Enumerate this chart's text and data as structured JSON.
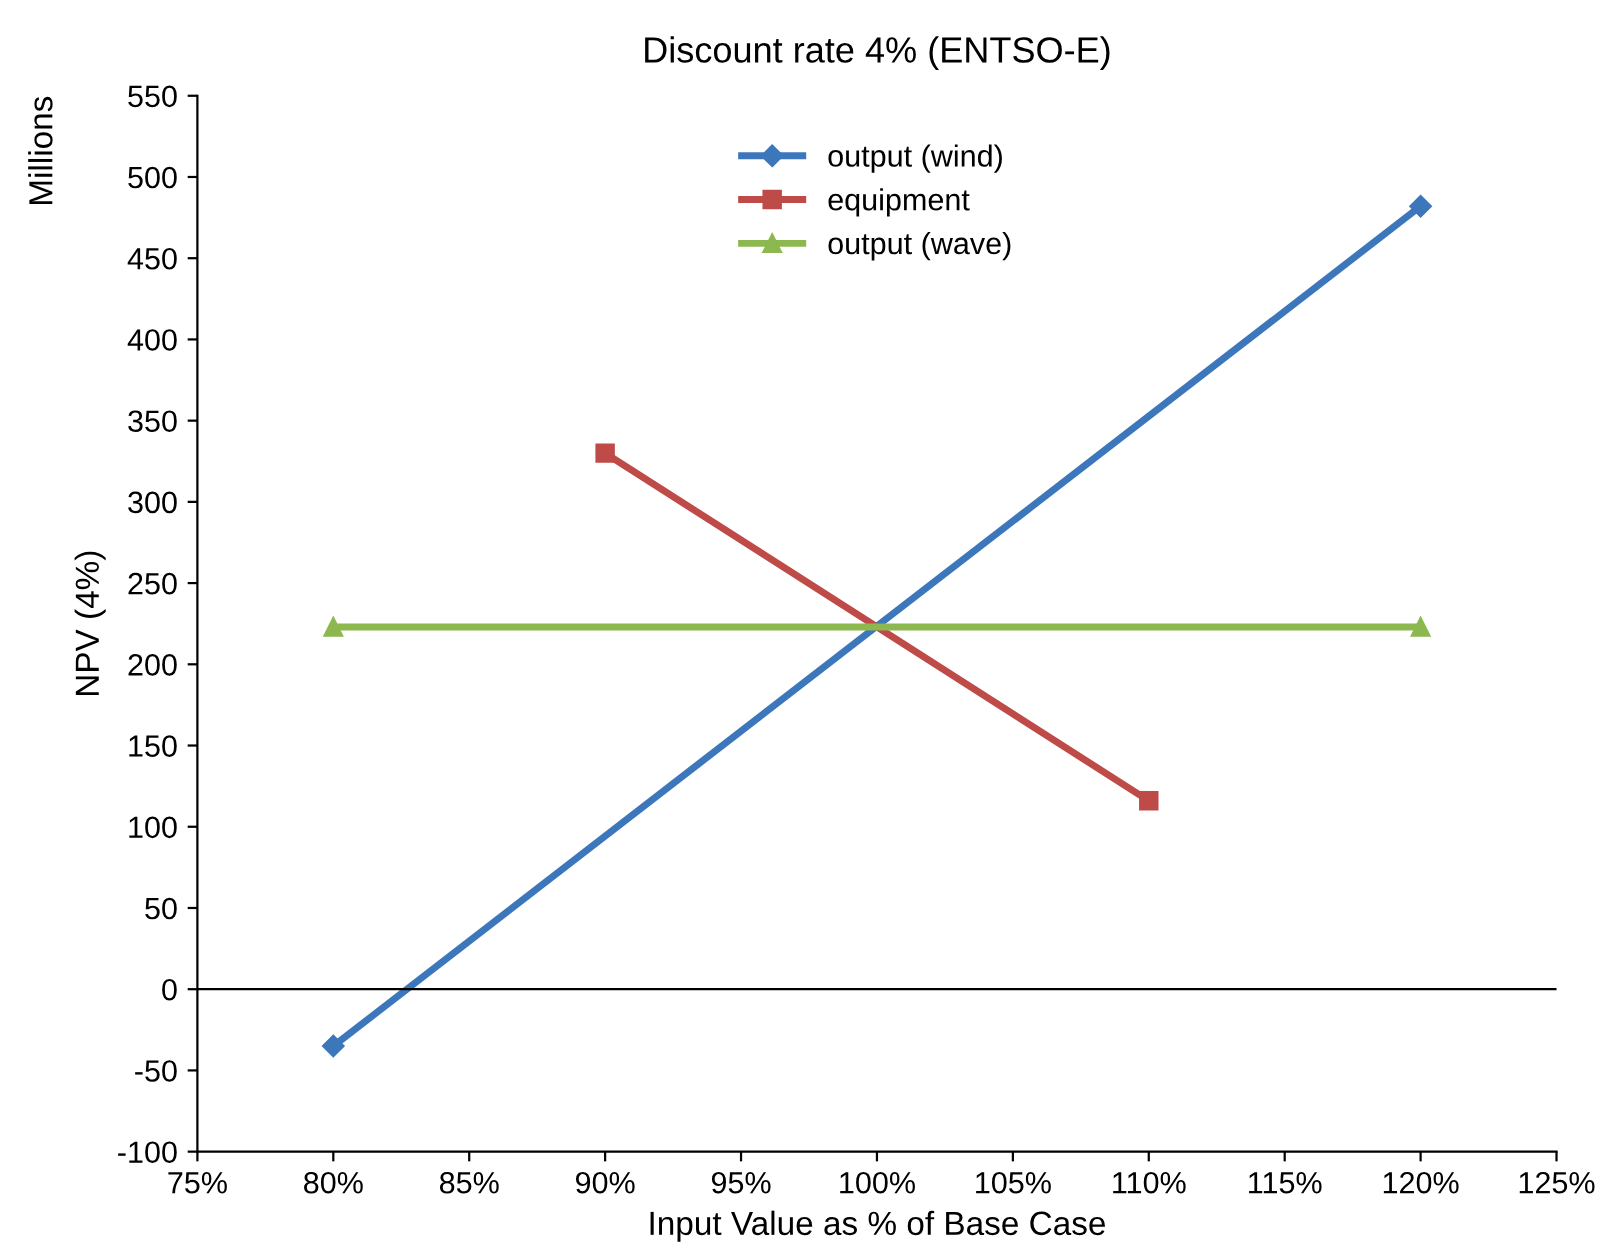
{
  "chart_data": {
    "type": "line",
    "title": "Discount rate 4% (ENTSO-E)",
    "xlabel": "Input Value as % of Base Case",
    "ylabel": "NPV (4%)",
    "annotations": [
      "Millions"
    ],
    "series": [
      {
        "name": "output (wind)",
        "color": "#3d77bb",
        "marker": "diamond",
        "x": [
          80,
          120
        ],
        "values": [
          -35,
          482
        ]
      },
      {
        "name": "equipment",
        "color": "#be4b48",
        "marker": "square",
        "x": [
          90,
          110
        ],
        "values": [
          330,
          116
        ]
      },
      {
        "name": "output (wave)",
        "color": "#8cb84f",
        "marker": "triangle",
        "x": [
          80,
          120
        ],
        "values": [
          223,
          223
        ]
      }
    ],
    "xlim": [
      75,
      125
    ],
    "xticks": [
      {
        "value": 75,
        "label": "75%"
      },
      {
        "value": 80,
        "label": "80%"
      },
      {
        "value": 85,
        "label": "85%"
      },
      {
        "value": 90,
        "label": "90%"
      },
      {
        "value": 95,
        "label": "95%"
      },
      {
        "value": 100,
        "label": "100%"
      },
      {
        "value": 105,
        "label": "105%"
      },
      {
        "value": 110,
        "label": "110%"
      },
      {
        "value": 115,
        "label": "115%"
      },
      {
        "value": 120,
        "label": "120%"
      },
      {
        "value": 125,
        "label": "125%"
      }
    ],
    "ylim": [
      -100,
      550
    ],
    "yticks": [
      -100,
      -50,
      0,
      50,
      100,
      150,
      200,
      250,
      300,
      350,
      400,
      450,
      500,
      550
    ],
    "ref_lines": [
      {
        "axis": "y",
        "value": 0,
        "color": "#000000",
        "line_style": "solid"
      }
    ],
    "grid": false,
    "legend": "top",
    "line_style": "solid"
  }
}
